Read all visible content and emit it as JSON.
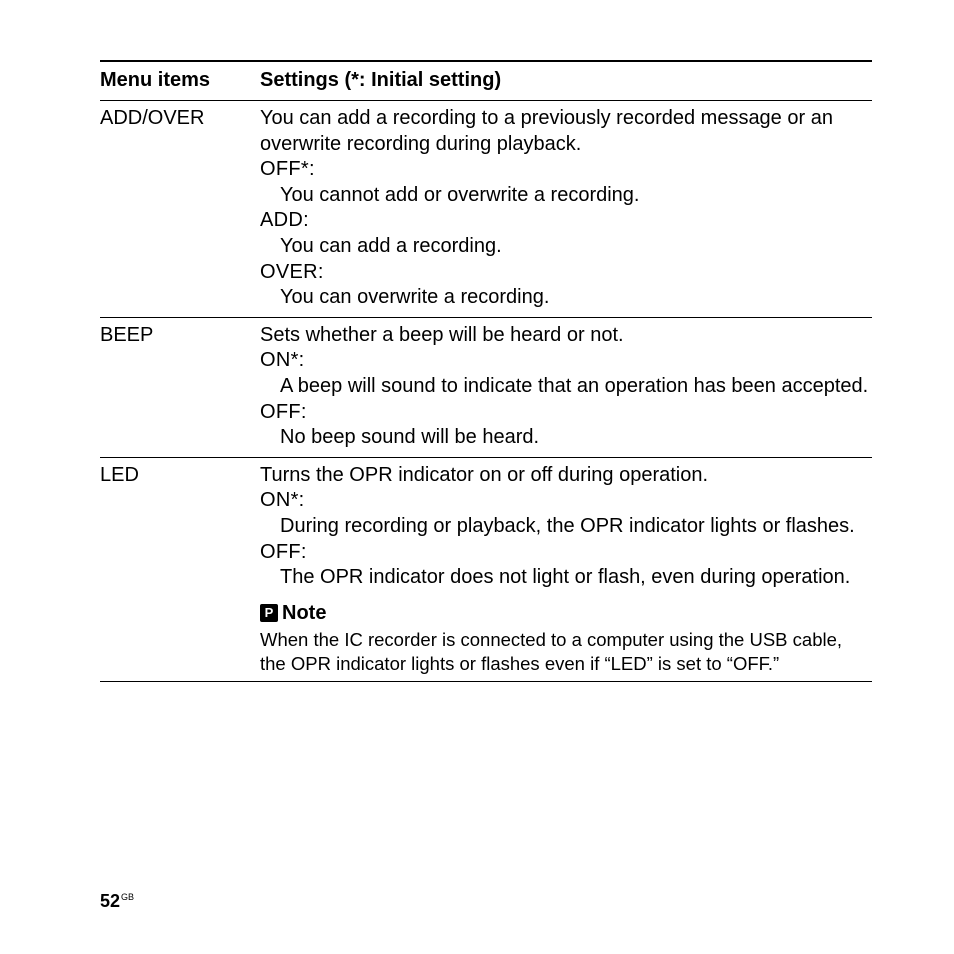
{
  "headers": {
    "col1": "Menu items",
    "col2": "Settings (*: Initial setting)"
  },
  "rows": [
    {
      "name": "ADD/OVER",
      "intro": "You can add a recording to a previously recorded message or an overwrite recording during playback.",
      "options": [
        {
          "label": "OFF*:",
          "desc": "You cannot add or overwrite a recording."
        },
        {
          "label": "ADD:",
          "desc": "You can add a recording."
        },
        {
          "label": "OVER:",
          "desc": "You can overwrite a recording."
        }
      ]
    },
    {
      "name": "BEEP",
      "intro": "Sets whether a beep will be heard or not.",
      "options": [
        {
          "label": "ON*:",
          "desc": "A beep will sound to indicate that an operation has been accepted."
        },
        {
          "label": "OFF:",
          "desc": "No beep sound will be heard."
        }
      ]
    },
    {
      "name": "LED",
      "intro": "Turns the OPR indicator on or off during operation.",
      "options": [
        {
          "label": "ON*:",
          "desc": "During recording or playback, the OPR indicator lights or flashes."
        },
        {
          "label": "OFF:",
          "desc": "The OPR indicator does not light or flash, even during operation."
        }
      ],
      "note": {
        "heading": "Note",
        "text": "When the IC recorder is connected to a computer using the USB cable, the OPR indicator lights or flashes even if “LED” is set to “OFF.”"
      }
    }
  ],
  "page": {
    "number": "52",
    "suffix": "GB"
  }
}
